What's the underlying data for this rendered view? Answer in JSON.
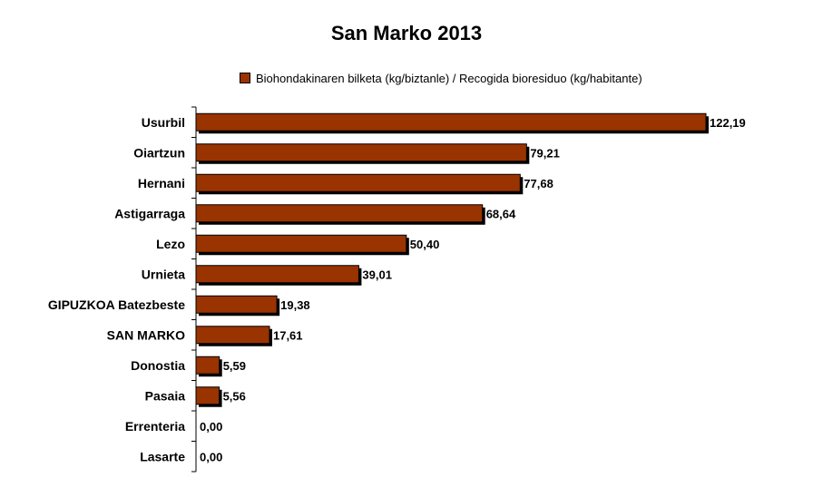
{
  "chart_data": {
    "type": "bar",
    "orientation": "horizontal",
    "title": "San Marko 2013",
    "categories": [
      "Usurbil",
      "Oiartzun",
      "Hernani",
      "Astigarraga",
      "Lezo",
      "Urnieta",
      "GIPUZKOA Batezbeste",
      "SAN MARKO",
      "Donostia",
      "Pasaia",
      "Errenteria",
      "Lasarte"
    ],
    "series": [
      {
        "name": "Biohondakinaren bilketa (kg/biztanle) / Recogida bioresiduo (kg/habitante)",
        "values": [
          122.19,
          79.21,
          77.68,
          68.64,
          50.4,
          39.01,
          19.38,
          17.61,
          5.59,
          5.56,
          0.0,
          0.0
        ],
        "labels": [
          "122,19",
          "79,21",
          "77,68",
          "68,64",
          "50,40",
          "39,01",
          "19,38",
          "17,61",
          "5,59",
          "5,56",
          "0,00",
          "0,00"
        ]
      }
    ],
    "xlim": [
      0,
      122.19
    ],
    "grid": false,
    "legend_position": "top",
    "colors": {
      "bar": "#993300",
      "bar_border": "#000000",
      "shadow": "#000000"
    }
  }
}
